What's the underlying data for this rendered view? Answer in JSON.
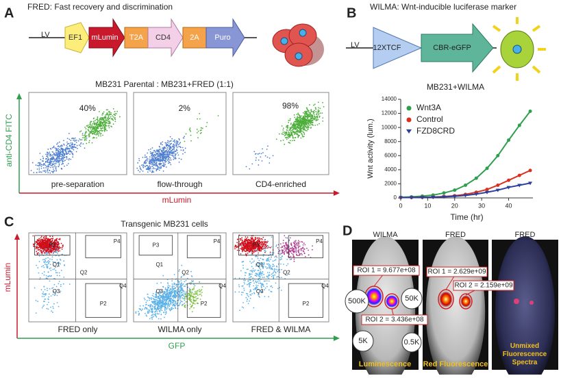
{
  "panels": {
    "A": {
      "letter": "A",
      "title": "FRED: Fast recovery and discrimination",
      "vector": "LV",
      "elements": [
        "EF1",
        "mLumin",
        "T2A",
        "CD4",
        "2A",
        "Puro"
      ],
      "subtitle": "MB231 Parental : MB231+FRED (1:1)",
      "plots": [
        {
          "label": "pre-separation",
          "percent": "40%"
        },
        {
          "label": "flow-through",
          "percent": "2%"
        },
        {
          "label": "CD4-enriched",
          "percent": "98%"
        }
      ],
      "y_axis_label": "anti-CD4 FITC",
      "x_axis_label": "mLumin"
    },
    "B": {
      "letter": "B",
      "title": "WILMA: Wnt-inducible luciferase marker",
      "vector": "LV",
      "elements": [
        "12XTCF",
        "CBR-eGFP"
      ],
      "chart_data": {
        "type": "line",
        "title": "MB231+WILMA",
        "x_label": "Time (hr)",
        "y_label": "Wnt activity (lum.)",
        "x": [
          0,
          4,
          8,
          12,
          16,
          20,
          24,
          28,
          32,
          36,
          40,
          44,
          48
        ],
        "series": [
          {
            "name": "Wnt3A",
            "color": "#2e9e4f",
            "values": [
              100,
              150,
              250,
              400,
              700,
              1100,
              1800,
              2800,
              4200,
              6000,
              8200,
              10300,
              12300
            ]
          },
          {
            "name": "Control",
            "color": "#d9301f",
            "values": [
              50,
              60,
              80,
              120,
              200,
              300,
              500,
              800,
              1200,
              1800,
              2500,
              3200,
              3900
            ]
          },
          {
            "name": "FZD8CRD",
            "color": "#2b3f9e",
            "values": [
              50,
              55,
              70,
              100,
              150,
              230,
              350,
              550,
              800,
              1100,
              1500,
              1800,
              2100
            ]
          }
        ],
        "xlim": [
          0,
          49
        ],
        "xticks": [
          0,
          10,
          20,
          30,
          40
        ],
        "ylim": [
          0,
          14000
        ],
        "yticks": [
          0,
          2000,
          4000,
          6000,
          8000,
          10000,
          12000,
          14000
        ]
      }
    },
    "C": {
      "letter": "C",
      "title": "Transgenic MB231 cells",
      "plots": [
        {
          "label": "FRED only"
        },
        {
          "label": "WILMA only"
        },
        {
          "label": "FRED & WILMA"
        }
      ],
      "gates": [
        "Q1",
        "Q2",
        "Q3",
        "Q4",
        "P2",
        "P3",
        "P4"
      ],
      "y_axis_label": "mLumin",
      "x_axis_label": "GFP"
    },
    "D": {
      "letter": "D",
      "images": [
        {
          "header": "WILMA",
          "caption": "Luminescence"
        },
        {
          "header": "FRED",
          "caption": "Red Fluorescence"
        },
        {
          "header": "FRED",
          "caption": "Unmixed Fluorescence Spectra"
        }
      ],
      "rois": [
        "ROI 1 = 9.677e+08",
        "ROI 2 = 3.436e+08",
        "ROI 1 = 2.629e+09",
        "ROI 2 = 2.159e+09"
      ],
      "scale": [
        "500K",
        "50K",
        "5K",
        "0.5K"
      ]
    }
  }
}
